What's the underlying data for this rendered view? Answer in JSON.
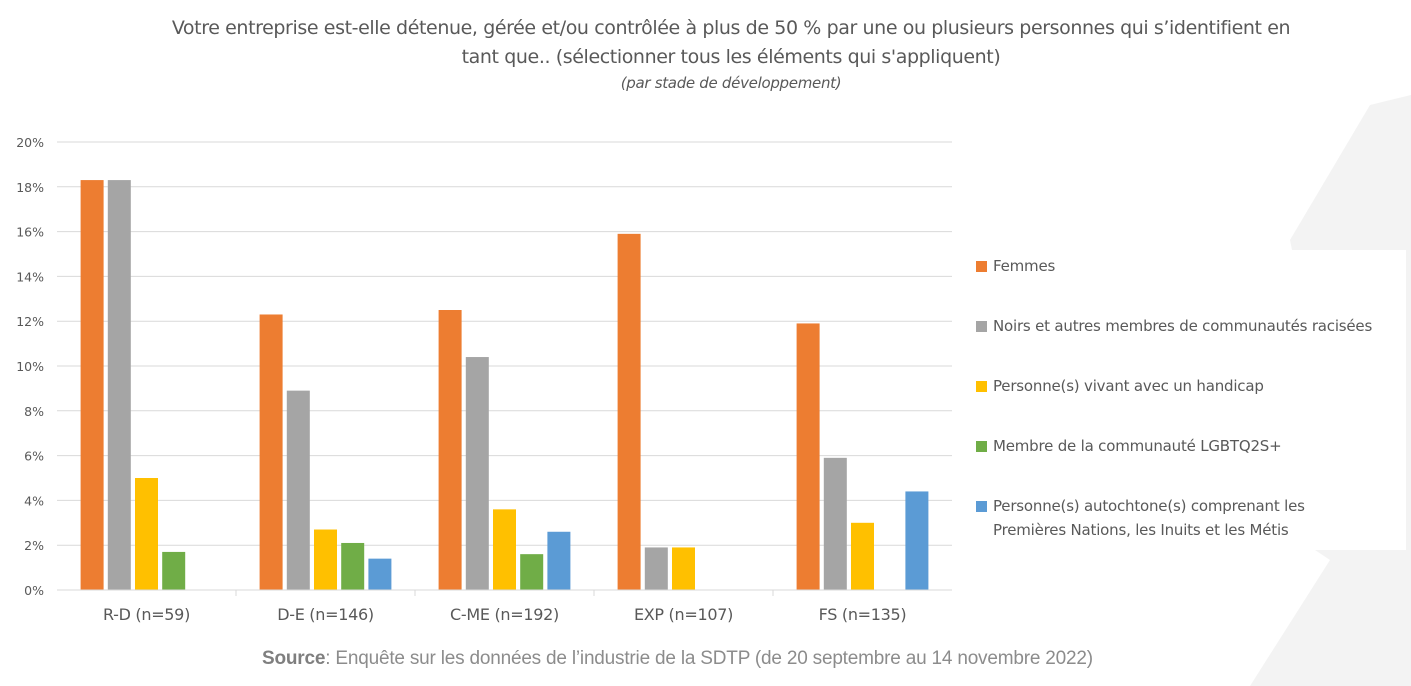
{
  "header": {
    "title_line1": "Votre entreprise est-elle détenue, gérée et/ou contrôlée à plus de 50 % par une ou plusieurs personnes qui s’identifient en",
    "title_line2": "tant que.. (sélectionner tous les éléments qui s'appliquent)",
    "subtitle": "(par stade de développement)"
  },
  "footer": {
    "source_label": "Source",
    "source_text": ": Enquête sur les données de l’industrie de la SDTP (de 20 septembre au 14 novembre 2022)"
  },
  "chart_data": {
    "type": "bar",
    "title": "Votre entreprise est-elle détenue, gérée et/ou contrôlée à plus de 50 % par une ou plusieurs personnes qui s’identifient en tant que.. (sélectionner tous les éléments qui s'appliquent)",
    "subtitle": "(par stade de développement)",
    "xlabel": "",
    "ylabel": "",
    "ylim": [
      0,
      20
    ],
    "yticks": [
      0,
      2,
      4,
      6,
      8,
      10,
      12,
      14,
      16,
      18,
      20
    ],
    "ytick_labels": [
      "0%",
      "2%",
      "4%",
      "6%",
      "8%",
      "10%",
      "12%",
      "14%",
      "16%",
      "18%",
      "20%"
    ],
    "grid": true,
    "legend_position": "right",
    "categories": [
      "R-D (n=59)",
      "D-E (n=146)",
      "C-ME (n=192)",
      "EXP (n=107)",
      "FS (n=135)"
    ],
    "series": [
      {
        "name": "Femmes",
        "color": "#ED7D31",
        "values": [
          18.3,
          12.3,
          12.5,
          15.9,
          11.9
        ]
      },
      {
        "name": "Noirs et autres membres de communautés racisées",
        "color": "#A5A5A5",
        "values": [
          18.3,
          8.9,
          10.4,
          1.9,
          5.9
        ]
      },
      {
        "name": "Personne(s) vivant avec un handicap",
        "color": "#FFC000",
        "values": [
          5.0,
          2.7,
          3.6,
          1.9,
          3.0
        ]
      },
      {
        "name": "Membre de la communauté LGBTQ2S+",
        "color": "#70AD47",
        "values": [
          1.7,
          2.1,
          1.6,
          0,
          0
        ]
      },
      {
        "name": "Personne(s) autochtone(s) comprenant les Premières Nations, les Inuits et les Métis",
        "name_line1": "Personne(s) autochtone(s) comprenant les",
        "name_line2": "Premières Nations, les Inuits et les Métis",
        "color": "#5B9BD5",
        "values": [
          0,
          1.4,
          2.6,
          0,
          4.4
        ]
      }
    ]
  }
}
